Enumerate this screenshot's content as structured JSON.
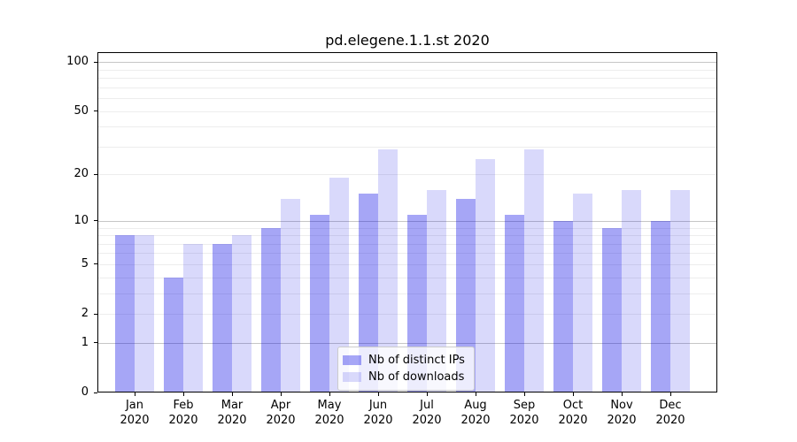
{
  "chart_data": {
    "type": "bar",
    "title": "pd.elegene.1.1.st 2020",
    "categories": [
      "Jan",
      "Feb",
      "Mar",
      "Apr",
      "May",
      "Jun",
      "Jul",
      "Aug",
      "Sep",
      "Oct",
      "Nov",
      "Dec"
    ],
    "year_label": "2020",
    "series": [
      {
        "name": "Nb of distinct IPs",
        "color": "rgba(0,0,230,0.35)",
        "values": [
          8,
          4,
          7,
          9,
          11,
          15,
          11,
          14,
          11,
          10,
          9,
          10
        ]
      },
      {
        "name": "Nb of downloads",
        "color": "rgba(0,0,230,0.15)",
        "values": [
          8,
          7,
          8,
          14,
          19,
          29,
          16,
          25,
          29,
          15,
          16,
          16
        ]
      }
    ],
    "y_scale": "log1p",
    "ylim": [
      0,
      100
    ],
    "y_ticks": [
      0,
      1,
      2,
      5,
      10,
      20,
      50,
      100
    ],
    "gridlines_major": [
      1,
      10,
      100
    ],
    "gridlines_minor": [
      2,
      3,
      4,
      5,
      6,
      7,
      8,
      9,
      20,
      30,
      40,
      50,
      60,
      70,
      80,
      90
    ],
    "legend_position": "lower center",
    "xlabel": "",
    "ylabel": ""
  },
  "colors": {
    "bar_distinct_ips": "rgba(0,0,230,0.35)",
    "bar_downloads": "rgba(0,0,230,0.15)",
    "grid_major": "#c6c6c6",
    "grid_minor": "#ededed",
    "axis": "#000000"
  }
}
